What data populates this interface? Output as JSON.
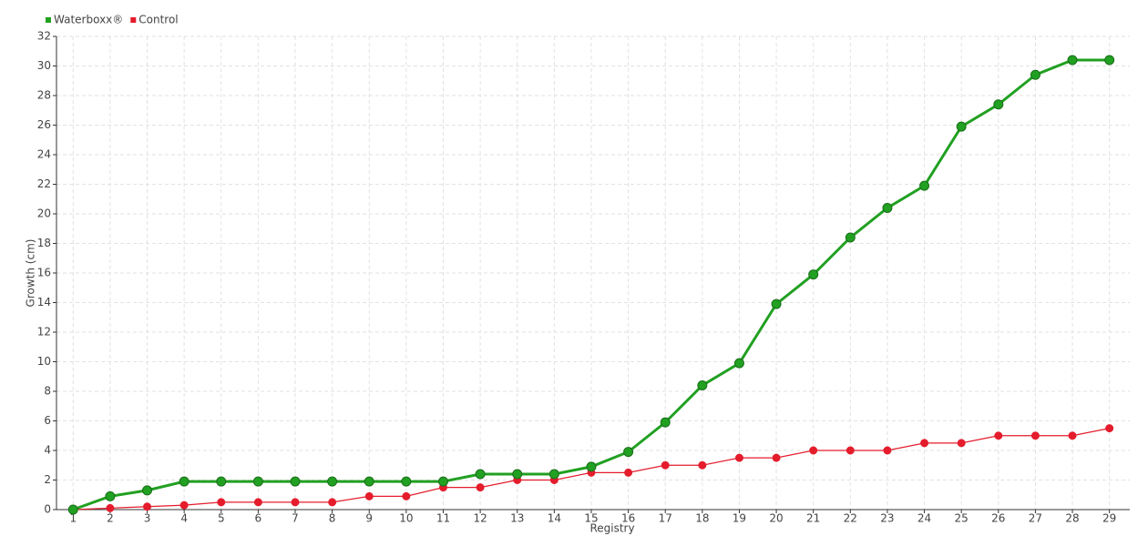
{
  "chart_data": {
    "type": "line",
    "x_label": "Registry",
    "y_label": "Growth (cm)",
    "categories": [
      "1",
      "2",
      "3",
      "4",
      "5",
      "6",
      "7",
      "8",
      "9",
      "10",
      "11",
      "12",
      "13",
      "14",
      "15",
      "16",
      "17",
      "18",
      "19",
      "20",
      "21",
      "22",
      "23",
      "24",
      "25",
      "26",
      "27",
      "28",
      "29"
    ],
    "series": [
      {
        "name": "Waterboxx®",
        "color": "#21a021",
        "values": [
          0,
          0.9,
          1.3,
          1.9,
          1.9,
          1.9,
          1.9,
          1.9,
          1.9,
          1.9,
          1.9,
          2.4,
          2.4,
          2.4,
          2.9,
          3.9,
          5.9,
          8.4,
          9.9,
          13.9,
          15.9,
          18.4,
          20.4,
          21.9,
          25.9,
          27.4,
          29.4,
          30.4,
          30.4
        ]
      },
      {
        "name": "Control",
        "color": "#e41c2c",
        "values": [
          0,
          0.1,
          0.2,
          0.3,
          0.5,
          0.5,
          0.5,
          0.5,
          0.9,
          0.9,
          1.5,
          1.5,
          2,
          2,
          2.5,
          2.5,
          3,
          3,
          3.5,
          3.5,
          4,
          4,
          4,
          4.5,
          4.5,
          5,
          5,
          5,
          5.5
        ]
      }
    ],
    "ylim": [
      0,
      32
    ],
    "yticks": [
      0,
      2,
      4,
      6,
      8,
      10,
      12,
      14,
      16,
      18,
      20,
      22,
      24,
      26,
      28,
      30,
      32
    ],
    "grid": true,
    "legend": "top-left"
  }
}
